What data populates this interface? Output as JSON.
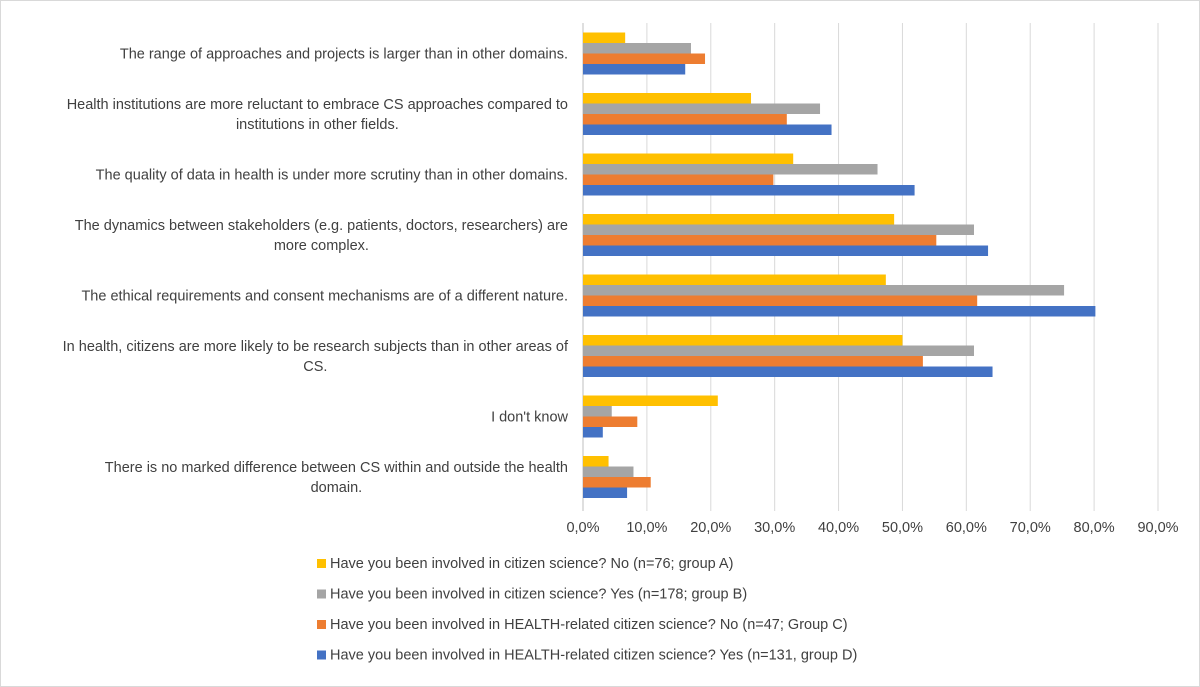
{
  "colors": {
    "group_a": "#FFC000",
    "group_b": "#A5A5A5",
    "group_c": "#ED7D31",
    "group_d": "#4472C4",
    "grid": "#D9D9D9",
    "text": "#404040"
  },
  "chart_data": {
    "type": "bar",
    "orientation": "horizontal",
    "title": "",
    "xlabel": "",
    "ylabel": "",
    "xlim": [
      0,
      90
    ],
    "grid": true,
    "legend_position": "bottom",
    "tick_labels": [
      "0,0%",
      "10,0%",
      "20,0%",
      "30,0%",
      "40,0%",
      "50,0%",
      "60,0%",
      "70,0%",
      "80,0%",
      "90,0%"
    ],
    "categories": [
      [
        "The range of approaches and projects is larger than in other domains."
      ],
      [
        "Health institutions are more reluctant to embrace CS approaches compared to",
        "institutions in other fields."
      ],
      [
        "The quality of data in health is under more scrutiny than in other domains."
      ],
      [
        "The dynamics between stakeholders (e.g. patients, doctors, researchers) are",
        "more complex."
      ],
      [
        "The ethical requirements and consent mechanisms are of a different nature."
      ],
      [
        "In health, citizens are more likely to be research subjects than in other areas of",
        "CS."
      ],
      [
        "I don't know"
      ],
      [
        "There is no marked difference between CS within and outside the health",
        "domain."
      ]
    ],
    "series": [
      {
        "name": "Have you been involved in citizen science?  No (n=76; group A)",
        "color_key": "group_a",
        "values": [
          6.6,
          26.3,
          32.9,
          48.7,
          47.4,
          50.0,
          21.1,
          4.0
        ]
      },
      {
        "name": "Have you been involved in citizen science?  Yes (n=178; group B)",
        "color_key": "group_b",
        "values": [
          16.9,
          37.1,
          46.1,
          61.2,
          75.3,
          61.2,
          4.5,
          7.9
        ]
      },
      {
        "name": "Have you been involved in HEALTH-related citizen science? No (n=47; Group C)",
        "color_key": "group_c",
        "values": [
          19.1,
          31.9,
          29.8,
          55.3,
          61.7,
          53.2,
          8.5,
          10.6
        ]
      },
      {
        "name": "Have you been involved in HEALTH-related citizen science? Yes (n=131, group D)",
        "color_key": "group_d",
        "values": [
          16.0,
          38.9,
          51.9,
          63.4,
          80.2,
          64.1,
          3.1,
          6.9
        ]
      }
    ]
  }
}
